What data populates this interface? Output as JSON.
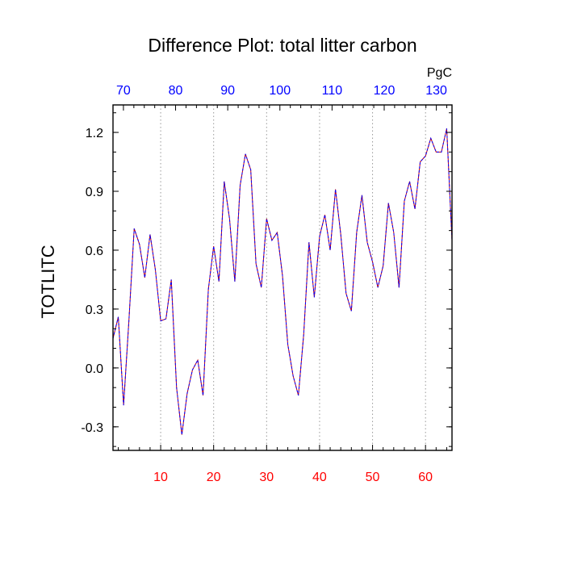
{
  "chart_data": {
    "type": "line",
    "title": "Difference Plot: total litter carbon",
    "ylabel": "TOTLITC",
    "top_axis_units": "PgC",
    "xlim": [
      1,
      65
    ],
    "ylim": [
      -0.42,
      1.34
    ],
    "y_ticks": [
      "1.2",
      "0.9",
      "0.6",
      "0.3",
      "0.0",
      "-0.3"
    ],
    "y_tick_values": [
      1.2,
      0.9,
      0.6,
      0.3,
      0.0,
      -0.3
    ],
    "x_ticks_bottom": [
      "10",
      "20",
      "30",
      "40",
      "50",
      "60"
    ],
    "x_tick_values_bottom": [
      10,
      20,
      30,
      40,
      50,
      60
    ],
    "x_ticks_top": [
      "70",
      "80",
      "90",
      "100",
      "110",
      "120",
      "130"
    ],
    "top_axis_range": [
      68,
      133
    ],
    "x_tick_values_top": [
      70,
      80,
      90,
      100,
      110,
      120,
      130
    ],
    "grid": "vertical dotted at bottom-axis major ticks",
    "series": [
      {
        "color": "#0000ff",
        "overlay_color": "#cc0000",
        "line_style": "dashed",
        "x": [
          1,
          2,
          3,
          4,
          5,
          6,
          7,
          8,
          9,
          10,
          11,
          12,
          13,
          14,
          15,
          16,
          17,
          18,
          19,
          20,
          21,
          22,
          23,
          24,
          25,
          26,
          27,
          28,
          29,
          30,
          31,
          32,
          33,
          34,
          35,
          36,
          37,
          38,
          39,
          40,
          41,
          42,
          43,
          44,
          45,
          46,
          47,
          48,
          49,
          50,
          51,
          52,
          53,
          54,
          55,
          56,
          57,
          58,
          59,
          60,
          61,
          62,
          63,
          64,
          65
        ],
        "values": [
          0.15,
          0.26,
          -0.19,
          0.24,
          0.71,
          0.63,
          0.46,
          0.68,
          0.5,
          0.24,
          0.25,
          0.45,
          -0.1,
          -0.34,
          -0.13,
          -0.01,
          0.04,
          -0.14,
          0.4,
          0.62,
          0.44,
          0.95,
          0.76,
          0.44,
          0.93,
          1.09,
          1.01,
          0.53,
          0.41,
          0.76,
          0.65,
          0.69,
          0.47,
          0.12,
          -0.04,
          -0.14,
          0.17,
          0.64,
          0.36,
          0.67,
          0.78,
          0.6,
          0.91,
          0.68,
          0.38,
          0.29,
          0.69,
          0.88,
          0.64,
          0.54,
          0.41,
          0.52,
          0.84,
          0.69,
          0.41,
          0.85,
          0.95,
          0.81,
          1.05,
          1.08,
          1.17,
          1.1,
          1.1,
          1.22,
          0.65
        ]
      }
    ]
  }
}
